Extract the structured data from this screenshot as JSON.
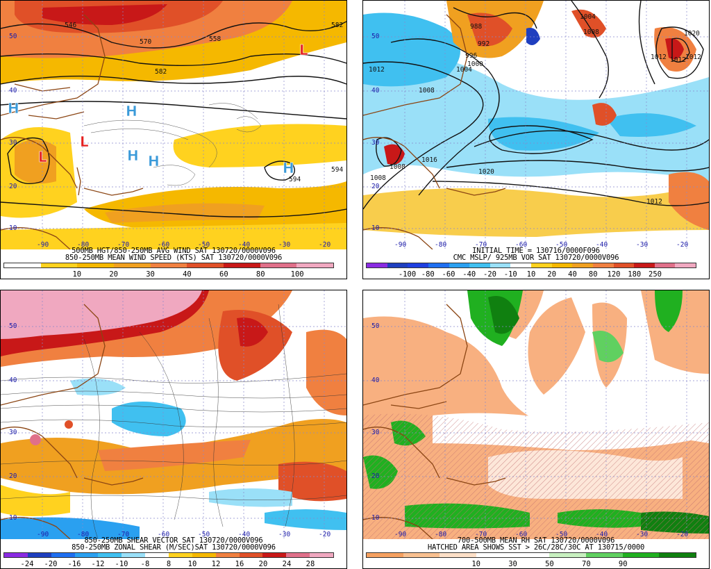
{
  "panels": [
    {
      "id": "wind",
      "title": "500MB HGT/850-250MB AVG WIND SAT 130720/0000V096",
      "subtitle": "850-250MB MEAN WIND SPEED (KTS) SAT 130720/0000V096",
      "colorbar": {
        "colors": [
          "#ffffff",
          "#ffd21f",
          "#f5b800",
          "#f0a020",
          "#f08040",
          "#e05028",
          "#c81818",
          "#e0708a",
          "#f0a8c0"
        ],
        "labels": [
          "10",
          "20",
          "30",
          "40",
          "60",
          "80",
          "100"
        ]
      },
      "lat_labels": [
        "50",
        "40",
        "30",
        "20",
        "10"
      ],
      "lon_labels": [
        "-90",
        "-80",
        "-70",
        "-60",
        "-50",
        "-40",
        "-30",
        "-20"
      ],
      "contour_labels": [
        "546",
        "570",
        "558",
        "582",
        "582",
        "594",
        "594"
      ],
      "highs": [
        "H",
        "H",
        "H",
        "H",
        "H"
      ],
      "lows": [
        "L",
        "L",
        "L"
      ]
    },
    {
      "id": "vort",
      "title": "INITIAL TIME = 130716/0000F096",
      "subtitle": "CMC MSLP/ 925MB VOR SAT 130720/0000V096",
      "colorbar": {
        "colors": [
          "#8a2be2",
          "#1f3fbf",
          "#1f3fe0",
          "#1f6ff0",
          "#2aa0f0",
          "#40c0f0",
          "#9ae0f8",
          "#ffffff",
          "#ffd21f",
          "#f5b800",
          "#f0a020",
          "#f08040",
          "#e05028",
          "#c81818",
          "#e0708a",
          "#f0a8c0"
        ],
        "labels": [
          "-100",
          "-80",
          "-60",
          "-40",
          "-20",
          "-10",
          "10",
          "20",
          "40",
          "80",
          "120",
          "180",
          "250"
        ]
      },
      "lat_labels": [
        "50",
        "40",
        "30",
        "20",
        "10"
      ],
      "lon_labels": [
        "-90",
        "-80",
        "-70",
        "-60",
        "-50",
        "-40",
        "-30",
        "-20"
      ],
      "contour_labels": [
        "1004",
        "988",
        "992",
        "996",
        "1000",
        "1012",
        "1008",
        "1004",
        "1016",
        "1020",
        "1008",
        "1012",
        "1012",
        "1012",
        "1020",
        "1012",
        "1008",
        "1008"
      ],
      "highs": [],
      "lows": []
    },
    {
      "id": "shear",
      "title": "850-250MB SHEAR VECTOR SAT 130720/0000V096",
      "subtitle": "850-250MB ZONAL SHEAR (M/SEC)SAT 130720/0000V096",
      "colorbar": {
        "colors": [
          "#8a2be2",
          "#1f3fbf",
          "#1f6ff0",
          "#2aa0f0",
          "#40c0f0",
          "#9ae0f8",
          "#ffffff",
          "#ffd21f",
          "#f5b800",
          "#f08040",
          "#e05028",
          "#c81818",
          "#e0708a",
          "#f0a8c0"
        ],
        "labels": [
          "-24",
          "-20",
          "-16",
          "-12",
          "-10",
          "-8",
          "8",
          "10",
          "12",
          "16",
          "20",
          "24",
          "28"
        ]
      },
      "lat_labels": [
        "50",
        "40",
        "30",
        "20",
        "10"
      ],
      "lon_labels": [
        "-90",
        "-80",
        "-70",
        "-60",
        "-50",
        "-40",
        "-30",
        "-20"
      ]
    },
    {
      "id": "rh",
      "title": "700-500MB MEAN RH SAT 130720/0000V096",
      "subtitle": "HATCHED AREA SHOWS SST > 26C/28C/30C AT 130715/0000",
      "colorbar": {
        "colors": [
          "#f5a060",
          "#f8c090",
          "#fde0c8",
          "#ffffff",
          "#ffffff",
          "#c8f0c0",
          "#60d060",
          "#20b020",
          "#108010"
        ],
        "labels": [
          "10",
          "30",
          "50",
          "70",
          "90"
        ]
      },
      "lat_labels": [
        "50",
        "40",
        "30",
        "20",
        "10"
      ],
      "lon_labels": [
        "-90",
        "-80",
        "-70",
        "-60",
        "-50",
        "-40",
        "-30",
        "-20"
      ]
    }
  ]
}
